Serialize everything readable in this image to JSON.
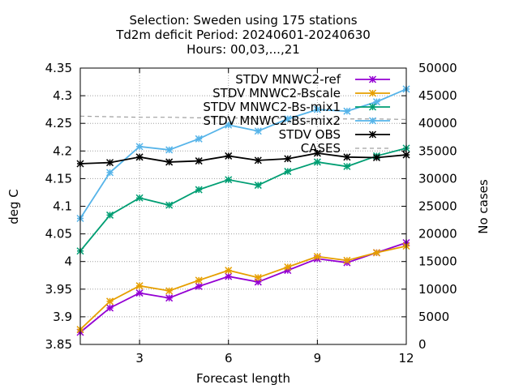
{
  "chart_data": {
    "type": "line",
    "title_lines": [
      "Selection: Sweden using   175 stations",
      "Td2m deficit   Period: 20240601-20240630",
      "Hours: 00,03,...,21"
    ],
    "xlabel": "Forecast length",
    "ylabel": "deg C",
    "y2label": "No cases",
    "xlim": [
      1,
      12
    ],
    "ylim": [
      3.85,
      4.35
    ],
    "y2lim": [
      0,
      50000
    ],
    "xticks": [
      3,
      6,
      9,
      12
    ],
    "yticks": [
      3.85,
      3.9,
      3.95,
      4,
      4.05,
      4.1,
      4.15,
      4.2,
      4.25,
      4.3,
      4.35
    ],
    "y2ticks": [
      0,
      5000,
      10000,
      15000,
      20000,
      25000,
      30000,
      35000,
      40000,
      45000,
      50000
    ],
    "grid": true,
    "legend_position": "top-right",
    "x": [
      1,
      2,
      3,
      4,
      5,
      6,
      7,
      8,
      9,
      10,
      11,
      12
    ],
    "series": [
      {
        "name": "STDV MNWC2-ref",
        "color": "#9400d3",
        "axis": "y1",
        "style": "line-points",
        "values": [
          3.872,
          3.916,
          3.943,
          3.934,
          3.955,
          3.973,
          3.963,
          3.984,
          4.005,
          3.998,
          4.016,
          4.034
        ]
      },
      {
        "name": "STDV MNWC2-Bscale",
        "color": "#e69f00",
        "axis": "y1",
        "style": "line-points",
        "values": [
          3.877,
          3.928,
          3.956,
          3.947,
          3.966,
          3.984,
          3.971,
          3.99,
          4.009,
          4.002,
          4.016,
          4.028
        ]
      },
      {
        "name": "STDV MNWC2-Bs-mix1",
        "color": "#009e73",
        "axis": "y1",
        "style": "line-points",
        "values": [
          4.019,
          4.084,
          4.115,
          4.102,
          4.13,
          4.148,
          4.138,
          4.163,
          4.18,
          4.172,
          4.191,
          4.205
        ]
      },
      {
        "name": "STDV MNWC2-Bs-mix2",
        "color": "#56b4e9",
        "axis": "y1",
        "style": "line-points",
        "values": [
          4.078,
          4.161,
          4.208,
          4.202,
          4.222,
          4.247,
          4.236,
          4.258,
          4.275,
          4.272,
          4.289,
          4.312
        ]
      },
      {
        "name": "STDV OBS",
        "color": "#000000",
        "axis": "y1",
        "style": "line-points",
        "values": [
          4.177,
          4.179,
          4.189,
          4.18,
          4.182,
          4.191,
          4.183,
          4.186,
          4.196,
          4.189,
          4.188,
          4.193
        ]
      },
      {
        "name": "CASES",
        "color": "#a0a0a0",
        "axis": "y2",
        "style": "dashed",
        "values": [
          41300,
          41200,
          41100,
          41100,
          41000,
          41000,
          40900,
          40900,
          40800,
          40800,
          40800,
          40700
        ]
      }
    ]
  }
}
